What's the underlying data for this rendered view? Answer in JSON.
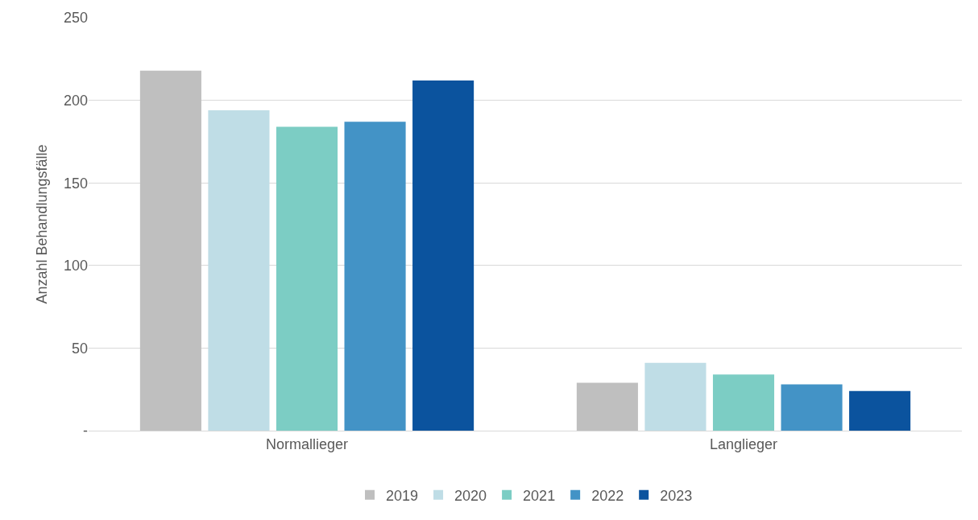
{
  "chart_data": {
    "type": "bar",
    "ylabel": "Anzahl Behandlungsfälle",
    "categories": [
      "Normallieger",
      "Langlieger"
    ],
    "series": [
      {
        "name": "2019",
        "color": "#bfbfbf",
        "values": [
          218,
          29
        ]
      },
      {
        "name": "2020",
        "color": "#bfdde6",
        "values": [
          194,
          41
        ]
      },
      {
        "name": "2021",
        "color": "#7ccdc4",
        "values": [
          184,
          34
        ]
      },
      {
        "name": "2022",
        "color": "#4393c6",
        "values": [
          187,
          28
        ]
      },
      {
        "name": "2023",
        "color": "#0b539e",
        "values": [
          212,
          24
        ]
      }
    ],
    "ylim": [
      0,
      250
    ],
    "yticks": [
      {
        "value": 0,
        "label": "-"
      },
      50,
      100,
      150,
      200,
      250
    ],
    "grid": "y",
    "legend": "bottom"
  }
}
